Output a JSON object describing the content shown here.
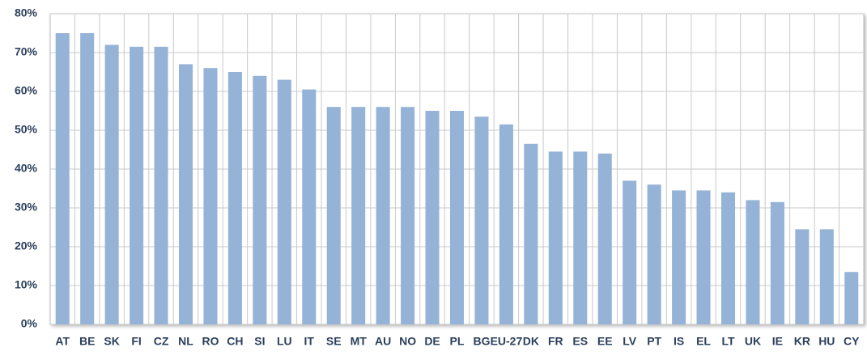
{
  "chart_data": {
    "type": "bar",
    "categories": [
      "AT",
      "BE",
      "SK",
      "FI",
      "CZ",
      "NL",
      "RO",
      "CH",
      "SI",
      "LU",
      "IT",
      "SE",
      "MT",
      "AU",
      "NO",
      "DE",
      "PL",
      "BG",
      "EU-27",
      "DK",
      "FR",
      "ES",
      "EE",
      "LV",
      "PT",
      "IS",
      "EL",
      "LT",
      "UK",
      "IE",
      "KR",
      "HU",
      "CY"
    ],
    "values": [
      75,
      75,
      72,
      71.5,
      71.5,
      67,
      66,
      65,
      64,
      63,
      60.5,
      56,
      56,
      56,
      56,
      55,
      55,
      53.5,
      51.5,
      46.5,
      44.5,
      44.5,
      44,
      37,
      36,
      34.5,
      34.5,
      34,
      32,
      31.5,
      24.5,
      24.5,
      13.5
    ],
    "color": "#95b3d7",
    "ylim": [
      0,
      80
    ],
    "yticks": [
      {
        "value": 0,
        "label": "0%"
      },
      {
        "value": 10,
        "label": "10%"
      },
      {
        "value": 20,
        "label": "20%"
      },
      {
        "value": 30,
        "label": "30%"
      },
      {
        "value": 40,
        "label": "40%"
      },
      {
        "value": 50,
        "label": "50%"
      },
      {
        "value": 60,
        "label": "60%"
      },
      {
        "value": 70,
        "label": "70%"
      },
      {
        "value": 80,
        "label": "80%"
      }
    ],
    "grid": true
  }
}
